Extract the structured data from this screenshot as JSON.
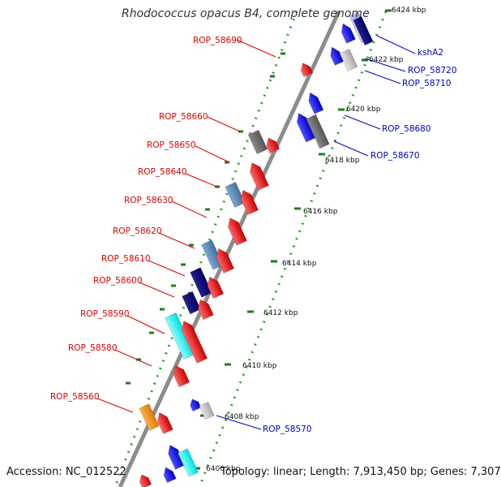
{
  "title": "Rhodococcus opacus B4, complete genome",
  "footer": {
    "accession": "Accession: NC_012522",
    "summary": "Topology: linear; Length: 7,913,450 bp; Genes: 7,307"
  },
  "colors": {
    "red_gene": "#ff0000",
    "blue_gene": "#0000ff",
    "label_red": "#dd0000",
    "label_blue": "#0000cc",
    "backbone": "#808080",
    "dotted_track": "#2e9e2e"
  },
  "gene_labels": [
    {
      "text": "ROP_58690",
      "strand": "reverse"
    },
    {
      "text": "ROP_58660",
      "strand": "reverse"
    },
    {
      "text": "ROP_58650",
      "strand": "reverse"
    },
    {
      "text": "ROP_58640",
      "strand": "reverse"
    },
    {
      "text": "ROP_58630",
      "strand": "reverse"
    },
    {
      "text": "ROP_58620",
      "strand": "reverse"
    },
    {
      "text": "ROP_58610",
      "strand": "reverse"
    },
    {
      "text": "ROP_58600",
      "strand": "reverse"
    },
    {
      "text": "ROP_58590",
      "strand": "reverse"
    },
    {
      "text": "ROP_58580",
      "strand": "reverse"
    },
    {
      "text": "ROP_58560",
      "strand": "reverse"
    },
    {
      "text": "kshA2",
      "strand": "forward"
    },
    {
      "text": "ROP_58720",
      "strand": "forward"
    },
    {
      "text": "ROP_58710",
      "strand": "forward"
    },
    {
      "text": "ROP_58680",
      "strand": "forward"
    },
    {
      "text": "ROP_58670",
      "strand": "forward"
    },
    {
      "text": "ROP_58570",
      "strand": "forward"
    }
  ],
  "scale_labels": [
    "6424 kbp",
    "6422 kbp",
    "6420 kbp",
    "6418 kbp",
    "6416 kbp",
    "6414 kbp",
    "6412 kbp",
    "6410 kbp",
    "6408 kbp",
    "6406 kbp"
  ]
}
